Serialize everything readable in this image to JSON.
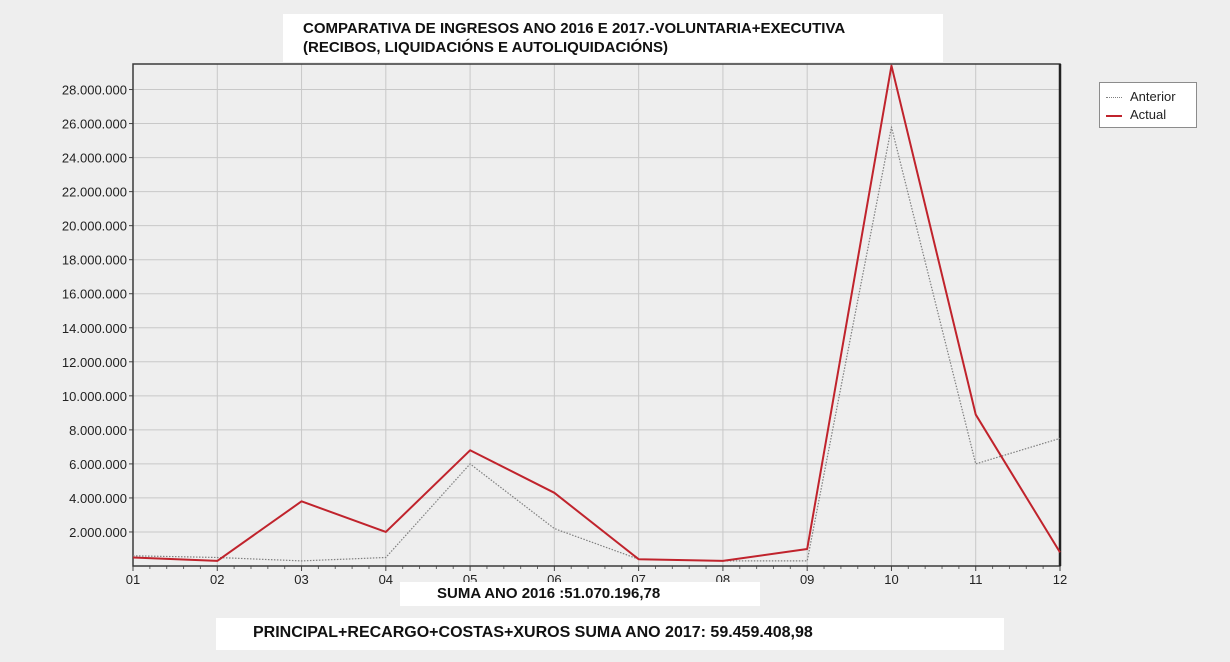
{
  "chart_data": {
    "type": "line",
    "title": "COMPARATIVA DE INGRESOS ANO 2016 E 2017.-VOLUNTARIA+EXECUTIVA",
    "subtitle": "(RECIBOS, LIQUIDACIÓNS E AUTOLIQUIDACIÓNS)",
    "categories": [
      "01",
      "02",
      "03",
      "04",
      "05",
      "06",
      "07",
      "08",
      "09",
      "10",
      "11",
      "12"
    ],
    "ylim": [
      0,
      29500000
    ],
    "y_ticks": [
      2000000,
      4000000,
      6000000,
      8000000,
      10000000,
      12000000,
      14000000,
      16000000,
      18000000,
      20000000,
      22000000,
      24000000,
      26000000,
      28000000
    ],
    "y_tick_labels": [
      "2.000.000",
      "4.000.000",
      "6.000.000",
      "8.000.000",
      "10.000.000",
      "12.000.000",
      "14.000.000",
      "16.000.000",
      "18.000.000",
      "20.000.000",
      "22.000.000",
      "24.000.000",
      "26.000.000",
      "28.000.000"
    ],
    "grid": true,
    "legend_position": "right",
    "series": [
      {
        "name": "Anterior",
        "color": "#7f7f7f",
        "style": "dotted",
        "values": [
          600000,
          500000,
          300000,
          500000,
          6000000,
          2200000,
          400000,
          300000,
          300000,
          25800000,
          6000000,
          7500000
        ]
      },
      {
        "name": "Actual",
        "color": "#c0232c",
        "style": "solid",
        "values": [
          500000,
          300000,
          3800000,
          2000000,
          6800000,
          4300000,
          400000,
          300000,
          1000000,
          29400000,
          8900000,
          800000
        ]
      }
    ]
  },
  "footer": {
    "sum_2016": "SUMA ANO 2016 :51.070.196,78",
    "sum_2017": "PRINCIPAL+RECARGO+COSTAS+XUROS SUMA ANO 2017: 59.459.408,98"
  }
}
